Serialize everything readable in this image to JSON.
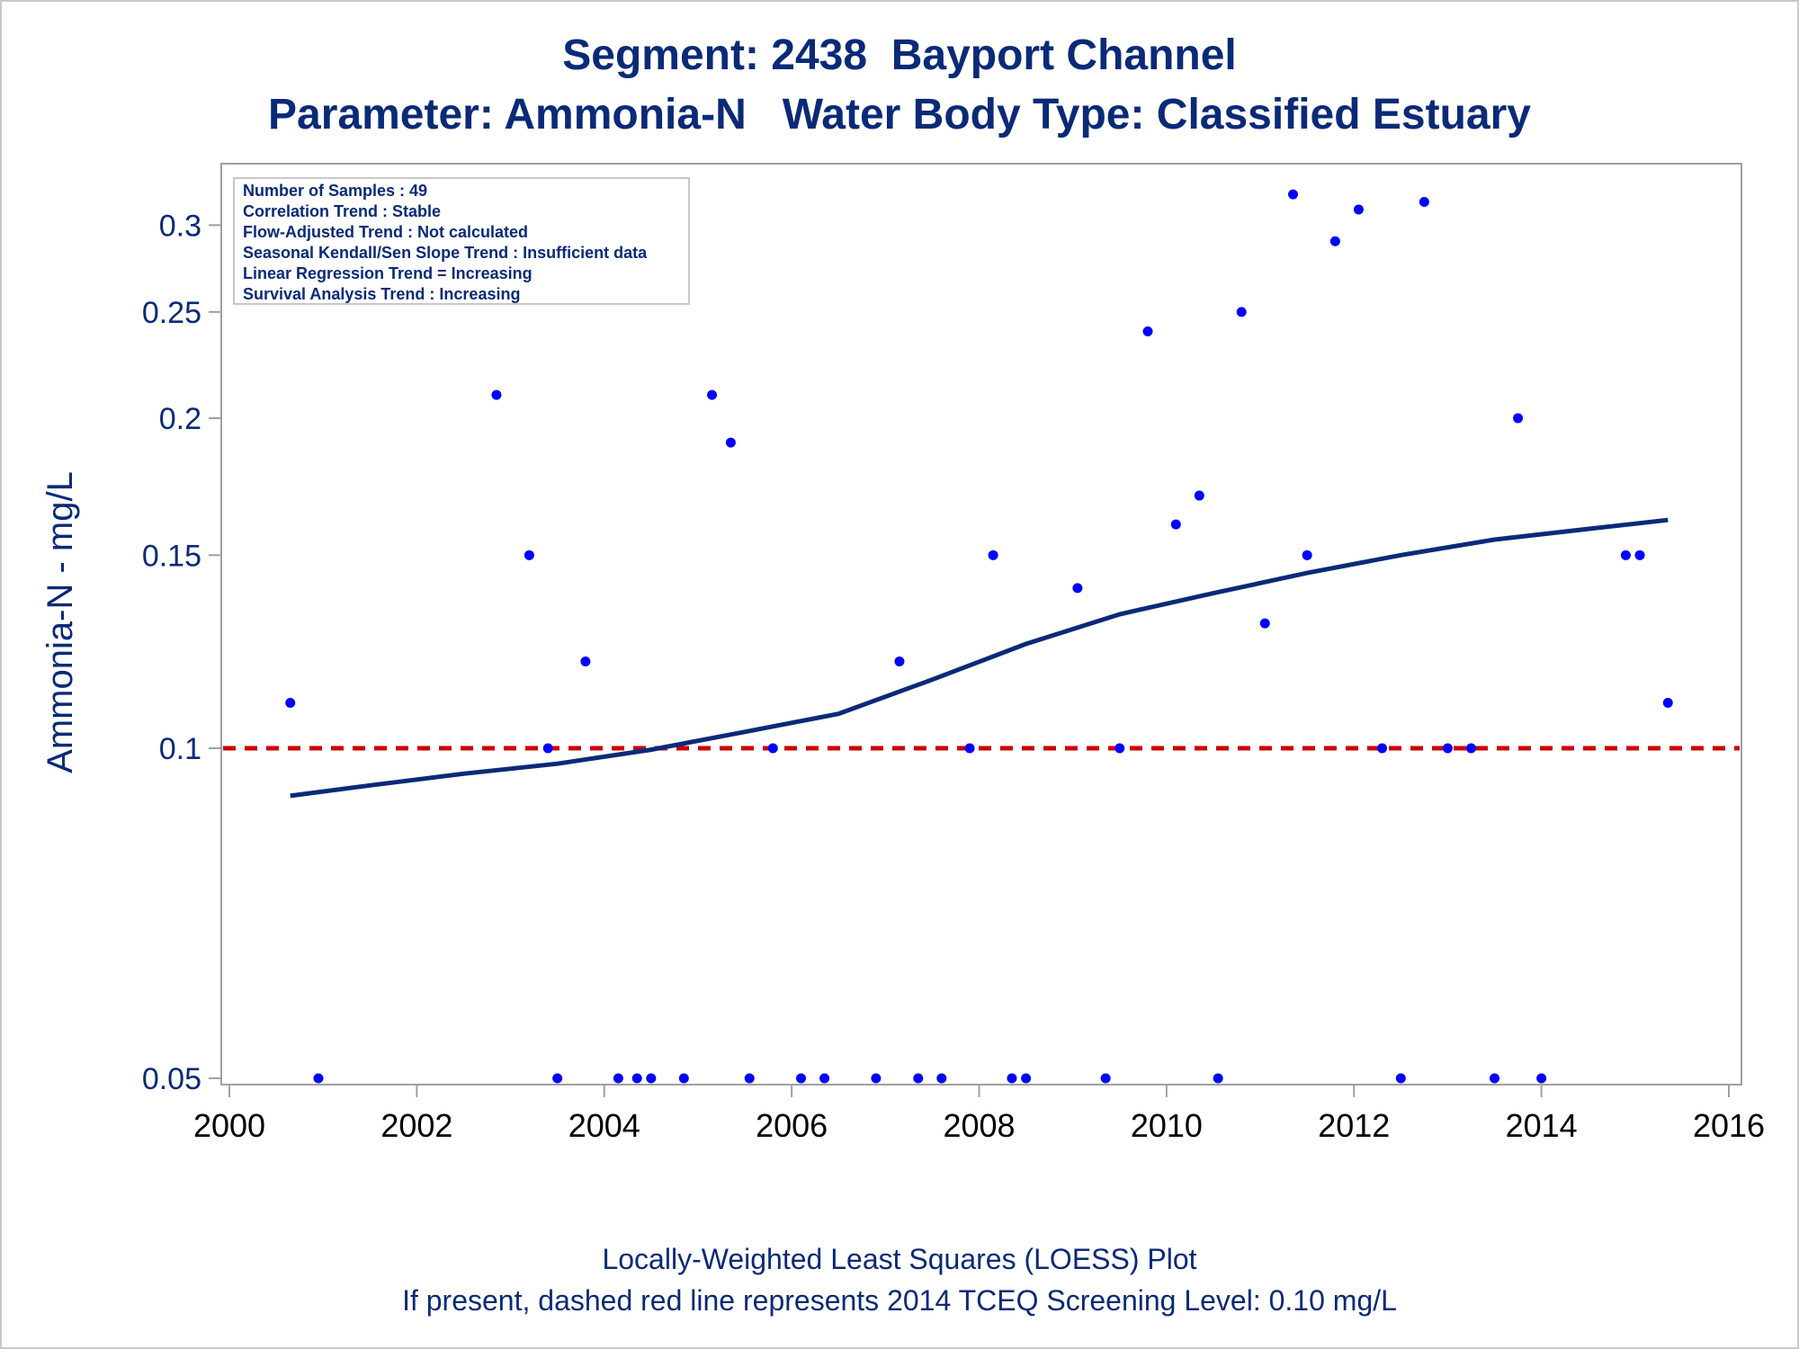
{
  "title": "Segment: 2438  Bayport Channel",
  "subtitle": "Parameter: Ammonia-N   Water Body Type: Classified Estuary",
  "footnotes": [
    "Locally-Weighted Least Squares (LOESS) Plot",
    "If present, dashed red line represents 2014 TCEQ Screening Level: 0.10 mg/L"
  ],
  "colors": {
    "title": "#0a2a78",
    "points": "#0000ff",
    "loess_line": "#0a2a78",
    "screening_line": "#cc0000",
    "frame": "#a0a0a0"
  },
  "chart_data": {
    "type": "scatter",
    "title": "Segment: 2438  Bayport Channel",
    "subtitle": "Parameter: Ammonia-N   Water Body Type: Classified Estuary",
    "xlabel": "",
    "ylabel": "Ammonia-N - mg/L",
    "xlim": [
      2000,
      2016
    ],
    "ylim": [
      0.05,
      0.32
    ],
    "y_scale": "log",
    "x_ticks": [
      2000,
      2002,
      2004,
      2006,
      2008,
      2010,
      2012,
      2014,
      2016
    ],
    "y_ticks": [
      0.05,
      0.1,
      0.15,
      0.2,
      0.25,
      0.3
    ],
    "y_tick_labels": [
      "0.05",
      "0.1",
      "0.15",
      "0.2",
      "0.25",
      "0.3"
    ],
    "grid": false,
    "stats_box": {
      "position": "top-left",
      "lines": [
        "Number of Samples : 49",
        "Correlation Trend : Stable",
        "Flow-Adjusted Trend : Not calculated",
        "Seasonal Kendall/Sen Slope Trend : Insufficient data",
        "Linear Regression Trend = Increasing",
        "Survival Analysis Trend : Increasing"
      ]
    },
    "points": [
      [
        2000.65,
        0.11
      ],
      [
        2000.95,
        0.05
      ],
      [
        2002.85,
        0.21
      ],
      [
        2003.2,
        0.15
      ],
      [
        2003.4,
        0.1
      ],
      [
        2003.5,
        0.05
      ],
      [
        2003.8,
        0.12
      ],
      [
        2004.15,
        0.05
      ],
      [
        2004.35,
        0.05
      ],
      [
        2004.5,
        0.05
      ],
      [
        2004.85,
        0.05
      ],
      [
        2005.15,
        0.21
      ],
      [
        2005.35,
        0.19
      ],
      [
        2005.55,
        0.05
      ],
      [
        2005.8,
        0.1
      ],
      [
        2006.1,
        0.05
      ],
      [
        2006.35,
        0.05
      ],
      [
        2006.9,
        0.05
      ],
      [
        2007.15,
        0.12
      ],
      [
        2007.35,
        0.05
      ],
      [
        2007.6,
        0.05
      ],
      [
        2007.9,
        0.1
      ],
      [
        2008.15,
        0.15
      ],
      [
        2008.35,
        0.05
      ],
      [
        2008.5,
        0.05
      ],
      [
        2009.05,
        0.14
      ],
      [
        2009.35,
        0.05
      ],
      [
        2009.5,
        0.1
      ],
      [
        2009.8,
        0.24
      ],
      [
        2010.1,
        0.16
      ],
      [
        2010.35,
        0.17
      ],
      [
        2010.55,
        0.05
      ],
      [
        2010.8,
        0.25
      ],
      [
        2011.05,
        0.13
      ],
      [
        2011.35,
        0.32
      ],
      [
        2011.5,
        0.15
      ],
      [
        2011.8,
        0.29
      ],
      [
        2012.05,
        0.31
      ],
      [
        2012.3,
        0.1
      ],
      [
        2012.5,
        0.05
      ],
      [
        2012.75,
        0.315
      ],
      [
        2013.0,
        0.1
      ],
      [
        2013.25,
        0.1
      ],
      [
        2013.5,
        0.05
      ],
      [
        2013.75,
        0.2
      ],
      [
        2014.0,
        0.05
      ],
      [
        2014.9,
        0.15
      ],
      [
        2015.05,
        0.15
      ],
      [
        2015.35,
        0.11
      ]
    ],
    "loess": [
      [
        2000.65,
        0.0905
      ],
      [
        2001.5,
        0.0925
      ],
      [
        2002.5,
        0.0948
      ],
      [
        2003.5,
        0.0968
      ],
      [
        2004.5,
        0.0997
      ],
      [
        2005.5,
        0.1035
      ],
      [
        2006.5,
        0.1075
      ],
      [
        2007.5,
        0.1155
      ],
      [
        2008.5,
        0.1245
      ],
      [
        2009.5,
        0.1325
      ],
      [
        2010.5,
        0.1385
      ],
      [
        2011.5,
        0.1445
      ],
      [
        2012.5,
        0.15
      ],
      [
        2013.5,
        0.155
      ],
      [
        2014.5,
        0.1585
      ],
      [
        2015.35,
        0.1615
      ]
    ],
    "reference_line": {
      "y": 0.1,
      "style": "dashed",
      "color": "#cc0000"
    }
  }
}
